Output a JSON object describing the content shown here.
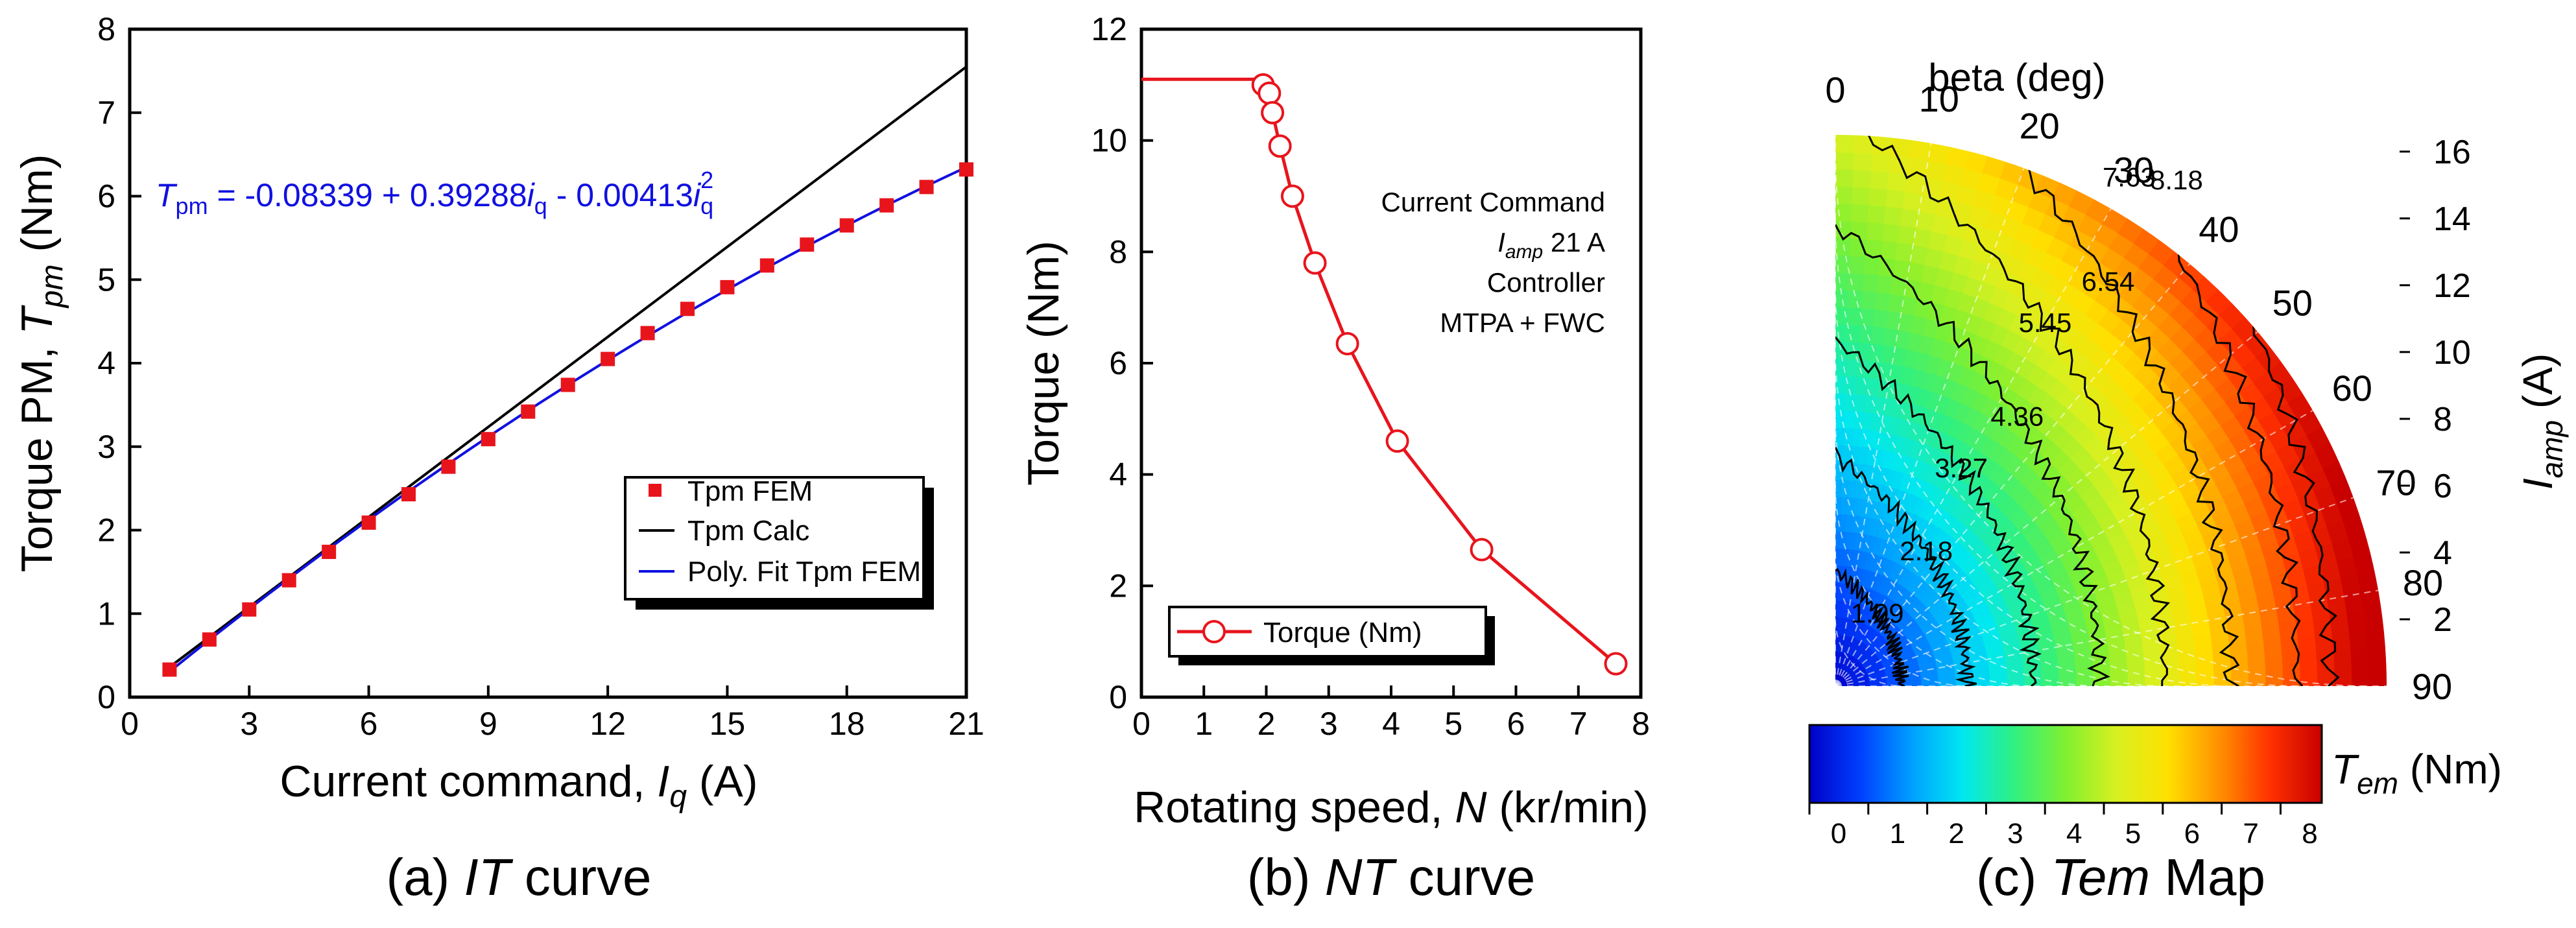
{
  "panels": {
    "a": {
      "caption_pre": "(a) ",
      "caption_ital": "IT",
      "caption_post": " curve"
    },
    "b": {
      "caption_pre": "(b) ",
      "caption_ital": "NT",
      "caption_post": " curve"
    },
    "c": {
      "caption_pre": "(c) ",
      "caption_ital": "Tem",
      "caption_post": " Map"
    }
  },
  "chart_data": [
    {
      "id": "a",
      "type": "line",
      "title": "(a) IT curve",
      "xlabel_text": "Current command, ",
      "xlabel_sym": "I",
      "xlabel_sub": "q",
      "xlabel_unit": " (A)",
      "ylabel_text": "Torque PM, ",
      "ylabel_sym": "T",
      "ylabel_sub": "pm",
      "ylabel_unit": " (Nm)",
      "xlim": [
        0,
        21
      ],
      "ylim": [
        0,
        8
      ],
      "xticks": [
        0,
        3,
        6,
        9,
        12,
        15,
        18,
        21
      ],
      "yticks": [
        0,
        1,
        2,
        3,
        4,
        5,
        6,
        7,
        8
      ],
      "equation": {
        "lhs": "T",
        "lhs_sub": "pm",
        "rhs1": " = -0.08339 + 0.39288",
        "var1": "i",
        "var1_sub": "q",
        "rhs2": " - 0.00413",
        "var2": "i",
        "var2_sub": "q",
        "var2_sup": "2"
      },
      "legend": {
        "position": "lower-right",
        "entries": [
          "Tpm FEM",
          "Tpm Calc",
          "Poly. Fit Tpm FEM"
        ]
      },
      "series": [
        {
          "name": "Tpm FEM",
          "style": "square-markers",
          "color": "#e8141c",
          "x": [
            1,
            2,
            3,
            4,
            5,
            6,
            7,
            8,
            9,
            10,
            11,
            12,
            13,
            14,
            15,
            16,
            17,
            18,
            19,
            20,
            21
          ],
          "y": [
            0.33,
            0.69,
            1.05,
            1.4,
            1.74,
            2.09,
            2.43,
            2.76,
            3.09,
            3.42,
            3.74,
            4.05,
            4.36,
            4.65,
            4.91,
            5.17,
            5.42,
            5.65,
            5.89,
            6.11,
            6.32
          ]
        },
        {
          "name": "Tpm Calc",
          "style": "line",
          "color": "#000000",
          "x": [
            1,
            21
          ],
          "y": [
            0.36,
            7.55
          ]
        },
        {
          "name": "Poly. Fit Tpm FEM",
          "style": "line",
          "color": "#1010e0",
          "fit": {
            "c0": -0.08339,
            "c1": 0.39288,
            "c2": -0.00413
          },
          "x_range": [
            1,
            21
          ]
        }
      ]
    },
    {
      "id": "b",
      "type": "line",
      "title": "(b) NT curve",
      "xlabel_text": "Rotating speed, ",
      "xlabel_sym": "N",
      "xlabel_unit": " (kr/min)",
      "ylabel": "Torque (Nm)",
      "xlim": [
        0,
        8
      ],
      "ylim": [
        0,
        12
      ],
      "xticks": [
        0,
        1,
        2,
        3,
        4,
        5,
        6,
        7,
        8
      ],
      "yticks": [
        0,
        2,
        4,
        6,
        8,
        10,
        12
      ],
      "annotation": {
        "line1": "Current Command",
        "line2_sym": "I",
        "line2_sub": "amp",
        "line2_rest": " 21 A",
        "line3": "Controller",
        "line4": "MTPA + FWC"
      },
      "legend": {
        "position": "bottom-left",
        "entries": [
          "Torque (Nm)"
        ]
      },
      "series": [
        {
          "name": "Torque (Nm)",
          "color": "#e8141c",
          "line_x": [
            0,
            1.9,
            1.95,
            2.0,
            2.05,
            2.1,
            2.22,
            2.42,
            2.78,
            3.3,
            4.1,
            5.45,
            7.6
          ],
          "line_y": [
            11.1,
            11.1,
            11.0,
            10.85,
            10.7,
            10.5,
            9.9,
            9.0,
            7.8,
            6.35,
            4.6,
            2.65,
            0.6
          ],
          "marker_x": [
            1.95,
            2.05,
            2.1,
            2.22,
            2.42,
            2.78,
            3.3,
            4.1,
            5.45,
            7.6
          ],
          "marker_y": [
            11.0,
            10.85,
            10.5,
            9.9,
            9.0,
            7.8,
            6.35,
            4.6,
            2.65,
            0.6
          ]
        }
      ]
    },
    {
      "id": "c",
      "type": "heatmap",
      "title": "(c) Tem Map",
      "beta_label": "beta (deg)",
      "beta_ticks": [
        0,
        10,
        20,
        30,
        40,
        50,
        60,
        70,
        80,
        90
      ],
      "radial_ticks": [
        2,
        4,
        6,
        8,
        10,
        12,
        14,
        16
      ],
      "radial_max": 16.5,
      "radial_label_sym": "I",
      "radial_label_sub": "amp",
      "radial_label_unit": " (A)",
      "contour_levels": [
        1.09,
        2.18,
        3.27,
        4.36,
        5.45,
        6.54,
        7.63,
        8.18
      ],
      "contour_labels": [
        "1.09",
        "2.18",
        "3.27",
        "4.36",
        "5.45",
        "6.54",
        "7.63",
        "8.18"
      ],
      "colorbar": {
        "min": 0,
        "max": 8.7,
        "ticks": [
          0,
          1,
          2,
          3,
          4,
          5,
          6,
          7,
          8
        ],
        "label_sym": "T",
        "label_sub": "em",
        "label_unit": " (Nm)"
      },
      "colormap": [
        "#0000c8",
        "#0040ff",
        "#00a0ff",
        "#00e8f0",
        "#30f080",
        "#80f030",
        "#d8f020",
        "#ffe000",
        "#ff9000",
        "#ff3000",
        "#c80000"
      ],
      "grid": "dashed"
    }
  ]
}
